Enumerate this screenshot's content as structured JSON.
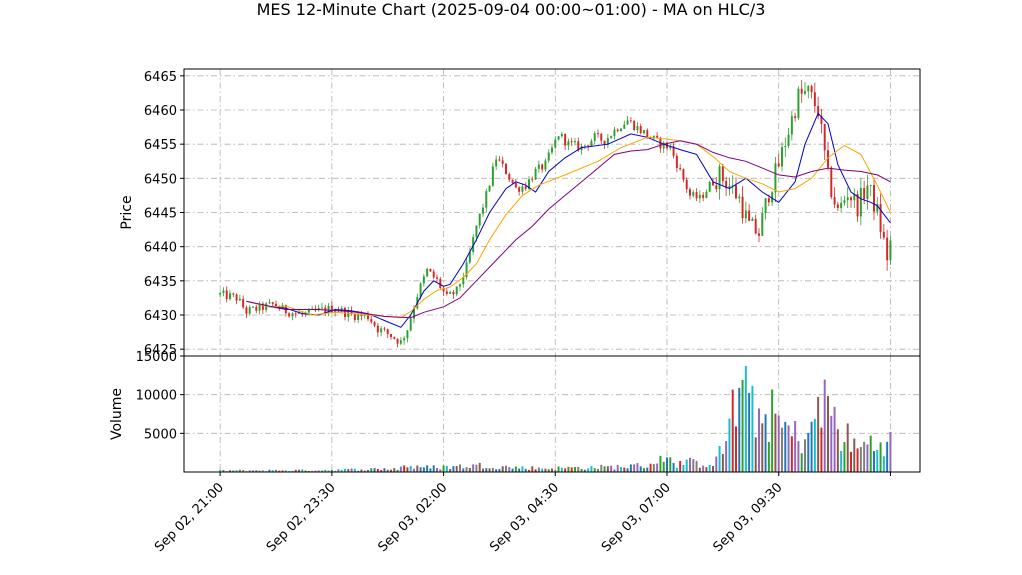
{
  "chart_data": {
    "type": "candlestick",
    "title": "MES 12-Minute Chart (2025-09-04 00:00~01:00) - MA on HLC/3",
    "price_panel": {
      "ylabel": "Price",
      "ylim": [
        6424,
        6466
      ],
      "yticks": [
        6425,
        6430,
        6435,
        6440,
        6445,
        6450,
        6455,
        6460,
        6465
      ],
      "grid": true,
      "up_color": "#2ca02c",
      "down_color": "#d62728",
      "ma_lines": [
        {
          "color": "#0000cc",
          "points": [
            [
              8,
              6432
            ],
            [
              15,
              6431.2
            ],
            [
              20,
              6431
            ],
            [
              25,
              6430.2
            ],
            [
              30,
              6430
            ],
            [
              35,
              6430.8
            ],
            [
              40,
              6430.6
            ],
            [
              45,
              6430.2
            ],
            [
              50,
              6429.2
            ],
            [
              55,
              6428.2
            ],
            [
              58,
              6430
            ],
            [
              62,
              6433.5
            ],
            [
              65,
              6435
            ],
            [
              68,
              6434.2
            ],
            [
              70,
              6434.5
            ],
            [
              74,
              6437.5
            ],
            [
              78,
              6441
            ],
            [
              82,
              6445
            ],
            [
              87,
              6448.5
            ],
            [
              90,
              6449.5
            ],
            [
              93,
              6449
            ],
            [
              96,
              6448
            ],
            [
              100,
              6451
            ],
            [
              105,
              6453
            ],
            [
              110,
              6454.5
            ],
            [
              118,
              6455
            ],
            [
              125,
              6456.5
            ],
            [
              130,
              6456
            ],
            [
              135,
              6455
            ],
            [
              140,
              6454.2
            ],
            [
              145,
              6453.5
            ],
            [
              150,
              6449.5
            ],
            [
              155,
              6448.5
            ],
            [
              160,
              6450
            ],
            [
              165,
              6448
            ],
            [
              170,
              6446.5
            ],
            [
              175,
              6449.5
            ],
            [
              178,
              6455
            ],
            [
              182,
              6459.5
            ],
            [
              185,
              6458
            ],
            [
              188,
              6452
            ],
            [
              192,
              6448
            ],
            [
              195,
              6447
            ],
            [
              198,
              6446.5
            ],
            [
              200,
              6446
            ],
            [
              204,
              6443.5
            ]
          ]
        },
        {
          "color": "#ffa500",
          "points": [
            [
              8,
              6432
            ],
            [
              15,
              6431.2
            ],
            [
              20,
              6431.3
            ],
            [
              28,
              6430
            ],
            [
              35,
              6430.4
            ],
            [
              45,
              6430
            ],
            [
              55,
              6429.6
            ],
            [
              58,
              6430.5
            ],
            [
              62,
              6432.3
            ],
            [
              66,
              6433.6
            ],
            [
              70,
              6434.1
            ],
            [
              74,
              6435.5
            ],
            [
              78,
              6437.5
            ],
            [
              82,
              6441
            ],
            [
              87,
              6444.7
            ],
            [
              92,
              6447.5
            ],
            [
              97,
              6449
            ],
            [
              105,
              6450.5
            ],
            [
              115,
              6452.5
            ],
            [
              122,
              6454.5
            ],
            [
              130,
              6456
            ],
            [
              135,
              6455.8
            ],
            [
              140,
              6455.5
            ],
            [
              145,
              6455
            ],
            [
              150,
              6453.2
            ],
            [
              155,
              6451
            ],
            [
              160,
              6450
            ],
            [
              165,
              6449.2
            ],
            [
              170,
              6448
            ],
            [
              175,
              6448.5
            ],
            [
              180,
              6450
            ],
            [
              185,
              6453
            ],
            [
              190,
              6454.8
            ],
            [
              195,
              6453.5
            ],
            [
              200,
              6449
            ],
            [
              204,
              6445
            ]
          ]
        },
        {
          "color": "#800080",
          "points": [
            [
              8,
              6432
            ],
            [
              20,
              6430.8
            ],
            [
              30,
              6430.8
            ],
            [
              40,
              6430.5
            ],
            [
              50,
              6429.8
            ],
            [
              58,
              6429.6
            ],
            [
              62,
              6430.4
            ],
            [
              68,
              6431.2
            ],
            [
              73,
              6432.5
            ],
            [
              78,
              6435
            ],
            [
              85,
              6438.5
            ],
            [
              90,
              6441
            ],
            [
              95,
              6443
            ],
            [
              100,
              6445.5
            ],
            [
              105,
              6447.5
            ],
            [
              110,
              6449.5
            ],
            [
              115,
              6451.5
            ],
            [
              120,
              6453.5
            ],
            [
              125,
              6454
            ],
            [
              130,
              6454.2
            ],
            [
              135,
              6455
            ],
            [
              140,
              6455.5
            ],
            [
              145,
              6455
            ],
            [
              150,
              6453.8
            ],
            [
              155,
              6453
            ],
            [
              160,
              6452.5
            ],
            [
              165,
              6451.5
            ],
            [
              170,
              6450.5
            ],
            [
              175,
              6450.2
            ],
            [
              180,
              6451
            ],
            [
              185,
              6451.5
            ],
            [
              190,
              6451.2
            ],
            [
              195,
              6451
            ],
            [
              200,
              6450.5
            ],
            [
              204,
              6449.5
            ]
          ]
        }
      ]
    },
    "volume_panel": {
      "ylabel": "Volume",
      "ylim": [
        0,
        15000
      ],
      "yticks": [
        5000,
        10000,
        15000
      ],
      "grid": true
    },
    "x_axis": {
      "range": [
        -11,
        213
      ],
      "ticks": [
        {
          "x": 0,
          "label": "Sep 02, 21:00"
        },
        {
          "x": 34,
          "label": "Sep 02, 23:30"
        },
        {
          "x": 68,
          "label": "Sep 03, 02:00"
        },
        {
          "x": 102,
          "label": "Sep 03, 04:30"
        },
        {
          "x": 136,
          "label": "Sep 03, 07:00"
        },
        {
          "x": 170,
          "label": "Sep 03, 09:30"
        },
        {
          "x": 204,
          "label": ""
        }
      ]
    },
    "anchors": [
      [
        0,
        6433
      ],
      [
        5,
        6432.5
      ],
      [
        8,
        6430.5
      ],
      [
        12,
        6431
      ],
      [
        16,
        6431.5
      ],
      [
        20,
        6430.6
      ],
      [
        25,
        6430
      ],
      [
        30,
        6430.6
      ],
      [
        35,
        6431
      ],
      [
        40,
        6430
      ],
      [
        45,
        6429.8
      ],
      [
        48,
        6428
      ],
      [
        52,
        6427
      ],
      [
        55,
        6426
      ],
      [
        57,
        6428
      ],
      [
        60,
        6433
      ],
      [
        63,
        6436.5
      ],
      [
        66,
        6435
      ],
      [
        69,
        6432.5
      ],
      [
        72,
        6433.5
      ],
      [
        75,
        6437
      ],
      [
        78,
        6443
      ],
      [
        81,
        6447.5
      ],
      [
        84,
        6453
      ],
      [
        87,
        6451
      ],
      [
        90,
        6448.5
      ],
      [
        93,
        6449
      ],
      [
        96,
        6451
      ],
      [
        99,
        6452
      ],
      [
        103,
        6456.5
      ],
      [
        106,
        6455
      ],
      [
        110,
        6454.5
      ],
      [
        114,
        6456
      ],
      [
        117,
        6455.5
      ],
      [
        121,
        6457.5
      ],
      [
        124,
        6458.5
      ],
      [
        128,
        6457
      ],
      [
        131,
        6456
      ],
      [
        134,
        6455
      ],
      [
        137,
        6454.5
      ],
      [
        140,
        6451
      ],
      [
        143,
        6447.5
      ],
      [
        146,
        6447
      ],
      [
        149,
        6449
      ],
      [
        152,
        6450.5
      ],
      [
        155,
        6449
      ],
      [
        158,
        6447
      ],
      [
        161,
        6443
      ],
      [
        164,
        6442
      ],
      [
        167,
        6448
      ],
      [
        170,
        6452
      ],
      [
        173,
        6457
      ],
      [
        176,
        6462
      ],
      [
        179,
        6462.5
      ],
      [
        182,
        6460
      ],
      [
        185,
        6450
      ],
      [
        188,
        6445
      ],
      [
        191,
        6448
      ],
      [
        194,
        6446
      ],
      [
        197,
        6449
      ],
      [
        200,
        6445
      ],
      [
        203,
        6438.5
      ],
      [
        204,
        6440.5
      ]
    ],
    "volume_anchors": [
      [
        0,
        200
      ],
      [
        30,
        250
      ],
      [
        54,
        450
      ],
      [
        56,
        900
      ],
      [
        60,
        600
      ],
      [
        70,
        700
      ],
      [
        80,
        900
      ],
      [
        90,
        600
      ],
      [
        100,
        500
      ],
      [
        110,
        600
      ],
      [
        120,
        700
      ],
      [
        130,
        900
      ],
      [
        133,
        1500
      ],
      [
        135,
        2500
      ],
      [
        138,
        900
      ],
      [
        140,
        1300
      ],
      [
        143,
        1300
      ],
      [
        146,
        1100
      ],
      [
        150,
        1300
      ],
      [
        153,
        3000
      ],
      [
        156,
        8500
      ],
      [
        158,
        10000
      ],
      [
        161,
        9500
      ],
      [
        164,
        7500
      ],
      [
        167,
        8000
      ],
      [
        170,
        6500
      ],
      [
        173,
        5500
      ],
      [
        176,
        4500
      ],
      [
        179,
        5500
      ],
      [
        182,
        7500
      ],
      [
        185,
        10000
      ],
      [
        188,
        5500
      ],
      [
        191,
        4500
      ],
      [
        194,
        3000
      ],
      [
        197,
        4000
      ],
      [
        200,
        3500
      ],
      [
        203,
        5000
      ],
      [
        204,
        4000
      ]
    ]
  }
}
